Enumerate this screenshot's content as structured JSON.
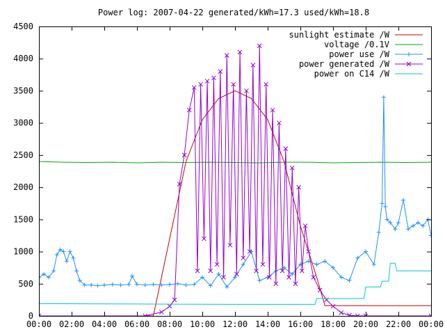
{
  "chart_data": {
    "type": "line",
    "title": "Power log: 2007-04-22 generated/kWh=17.3 used/kWh=18.8",
    "xlabel": "",
    "ylabel": "",
    "x_axis": {
      "min": 0,
      "max": 24,
      "ticks": [
        0,
        2,
        4,
        6,
        8,
        10,
        12,
        14,
        16,
        18,
        20,
        22,
        24
      ],
      "tick_labels": [
        "00:00",
        "02:00",
        "04:00",
        "06:00",
        "08:00",
        "10:00",
        "12:00",
        "14:00",
        "16:00",
        "18:00",
        "20:00",
        "22:00",
        "00:00"
      ]
    },
    "y_axis": {
      "min": 0,
      "max": 4500,
      "ticks": [
        0,
        500,
        1000,
        1500,
        2000,
        2500,
        3000,
        3500,
        4000,
        4500
      ],
      "tick_labels": [
        "0",
        "500",
        "1000",
        "1500",
        "2000",
        "2500",
        "3000",
        "3500",
        "4000",
        "4500"
      ]
    },
    "grid": false,
    "legend_position": "top-right",
    "series": [
      {
        "name": "sunlight estimate /W",
        "color": "#cc0000",
        "marker": "none",
        "x": [
          0,
          7.0,
          8.0,
          9.0,
          10.0,
          11.0,
          12.0,
          13.0,
          14.0,
          15.0,
          16.0,
          17.0,
          17.5,
          18.5,
          24
        ],
        "y": [
          0,
          0,
          1200,
          2400,
          3050,
          3380,
          3500,
          3380,
          3050,
          2400,
          1400,
          600,
          160,
          160,
          160
        ]
      },
      {
        "name": "voltage /0.1V",
        "color": "#00aa00",
        "marker": "none",
        "x": [
          0,
          1.5,
          3.0,
          4.5,
          6.0,
          7.5,
          9.0,
          10.5,
          12.0,
          13.5,
          15.0,
          16.5,
          18.0,
          19.5,
          21.0,
          22.5,
          24
        ],
        "y": [
          2400,
          2390,
          2385,
          2390,
          2380,
          2390,
          2385,
          2390,
          2385,
          2380,
          2390,
          2390,
          2380,
          2385,
          2390,
          2385,
          2390
        ]
      },
      {
        "name": "power use /W",
        "color": "#1e90ff",
        "marker": "plus",
        "x": [
          0,
          0.3,
          0.6,
          0.9,
          1.1,
          1.3,
          1.5,
          1.7,
          1.9,
          2.1,
          2.3,
          2.5,
          2.8,
          3.2,
          3.6,
          4.0,
          4.5,
          5.0,
          5.5,
          5.7,
          6.0,
          6.5,
          7.0,
          7.5,
          8.0,
          8.5,
          9.0,
          9.5,
          10.0,
          10.5,
          11.0,
          11.5,
          12.0,
          12.5,
          13.0,
          13.5,
          14.0,
          14.5,
          15.0,
          15.5,
          16.0,
          16.5,
          17.0,
          17.5,
          18.0,
          18.5,
          19.0,
          19.5,
          20.0,
          20.5,
          20.8,
          21.0,
          21.1,
          21.2,
          21.3,
          21.5,
          21.8,
          22.0,
          22.3,
          22.6,
          22.9,
          23.2,
          23.5,
          23.8,
          24.0
        ],
        "y": [
          600,
          650,
          600,
          700,
          950,
          1030,
          1000,
          850,
          1000,
          900,
          700,
          550,
          480,
          480,
          470,
          480,
          490,
          480,
          490,
          620,
          490,
          480,
          490,
          480,
          490,
          500,
          480,
          490,
          600,
          470,
          650,
          450,
          600,
          800,
          1000,
          550,
          600,
          700,
          750,
          650,
          800,
          850,
          800,
          850,
          750,
          600,
          550,
          900,
          1000,
          800,
          1300,
          1750,
          3400,
          1700,
          1500,
          1450,
          1350,
          1450,
          1800,
          1350,
          1400,
          1450,
          1400,
          1500,
          1250
        ]
      },
      {
        "name": "power generated /W",
        "color": "#9400d3",
        "marker": "x",
        "x": [
          0,
          6.5,
          7.5,
          8.0,
          8.3,
          8.6,
          8.9,
          9.2,
          9.5,
          9.7,
          9.9,
          10.1,
          10.3,
          10.5,
          10.7,
          10.9,
          11.1,
          11.3,
          11.5,
          11.7,
          11.9,
          12.1,
          12.3,
          12.5,
          12.7,
          12.9,
          13.1,
          13.3,
          13.5,
          13.7,
          13.9,
          14.1,
          14.3,
          14.5,
          14.7,
          14.9,
          15.1,
          15.3,
          15.5,
          15.7,
          15.9,
          16.1,
          16.3,
          16.5,
          16.8,
          17.2,
          17.6,
          18.0,
          18.5,
          19.0,
          19.5,
          20.0,
          24.0
        ],
        "y": [
          0,
          0,
          60,
          150,
          250,
          2050,
          2500,
          3200,
          3550,
          700,
          3600,
          1200,
          3650,
          700,
          3700,
          800,
          3800,
          600,
          4050,
          1100,
          3600,
          650,
          4100,
          900,
          3500,
          1000,
          3900,
          700,
          4200,
          800,
          3600,
          600,
          3200,
          500,
          3000,
          700,
          2600,
          600,
          2300,
          500,
          2000,
          700,
          1400,
          1000,
          600,
          400,
          250,
          150,
          50,
          10,
          0,
          0,
          0
        ]
      },
      {
        "name": "power on C14 /W",
        "color": "#00c8c8",
        "marker": "none",
        "x": [
          0,
          6.0,
          12.0,
          16.9,
          17.0,
          19.9,
          20.0,
          20.9,
          21.0,
          21.4,
          21.5,
          21.8,
          21.9,
          23.0,
          24.0
        ],
        "y": [
          190,
          185,
          180,
          180,
          270,
          270,
          450,
          450,
          540,
          540,
          820,
          820,
          700,
          700,
          700
        ]
      }
    ]
  }
}
